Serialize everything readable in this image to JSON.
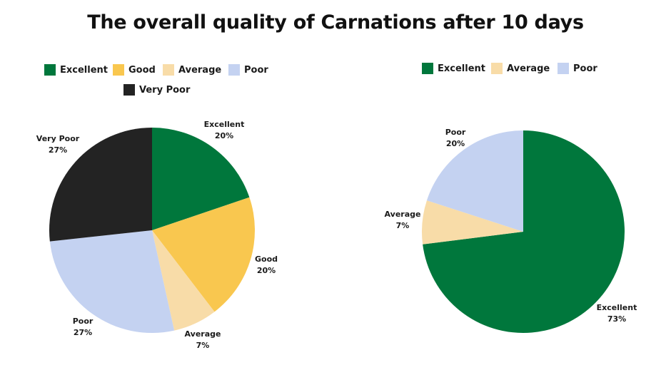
{
  "title": "The overall quality of Carnations after 10 days",
  "colors": {
    "Excellent": "#00773c",
    "Good": "#f9c74f",
    "Average": "#f8dca8",
    "Poor": "#c4d2f1",
    "Very Poor": "#232323"
  },
  "chart_data": [
    {
      "type": "pie",
      "legend": [
        "Excellent",
        "Good",
        "Average",
        "Poor",
        "Very Poor"
      ],
      "legend_placement": "top",
      "slices": [
        {
          "label": "Excellent",
          "value": 20,
          "value_text": "20%"
        },
        {
          "label": "Good",
          "value": 20,
          "value_text": "20%"
        },
        {
          "label": "Average",
          "value": 7,
          "value_text": "7%"
        },
        {
          "label": "Poor",
          "value": 27,
          "value_text": "27%"
        },
        {
          "label": "Very Poor",
          "value": 27,
          "value_text": "27%"
        }
      ]
    },
    {
      "type": "pie",
      "legend": [
        "Excellent",
        "Average",
        "Poor"
      ],
      "legend_placement": "top",
      "slices": [
        {
          "label": "Excellent",
          "value": 73,
          "value_text": "73%"
        },
        {
          "label": "Average",
          "value": 7,
          "value_text": "7%"
        },
        {
          "label": "Poor",
          "value": 20,
          "value_text": "20%"
        }
      ]
    }
  ]
}
